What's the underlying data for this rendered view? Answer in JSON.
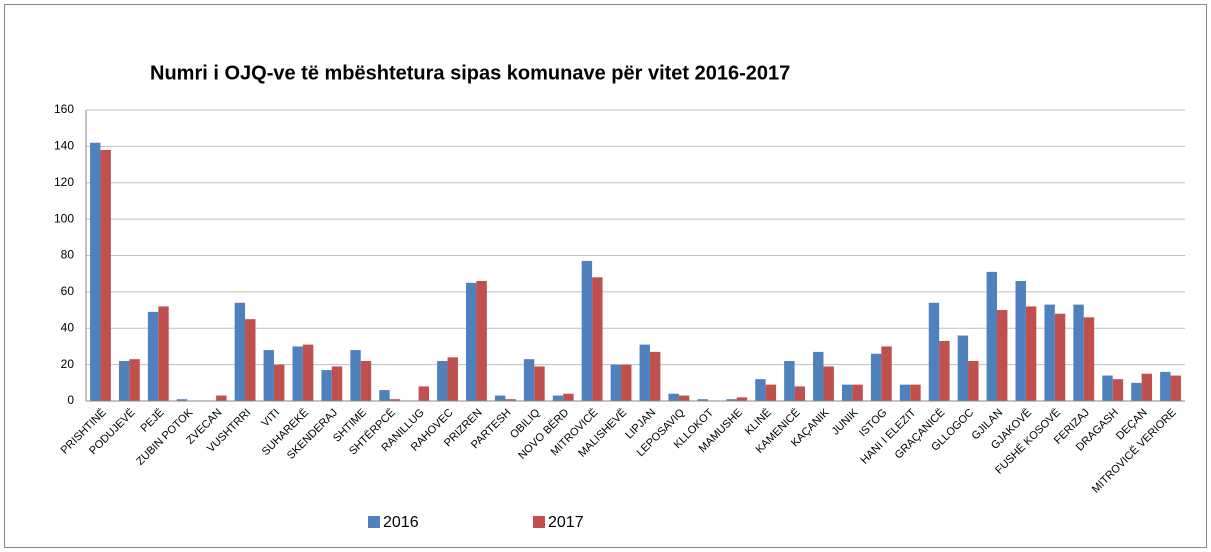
{
  "chart_data": {
    "type": "bar",
    "title": "Numri i OJQ-ve të mbështetura sipas komunave për vitet 2016-2017",
    "categories": [
      "PRISHTINË",
      "PODUJEVË",
      "PEJË",
      "ZUBIN POTOK",
      "ZVECAN",
      "VUSHTRRI",
      "VITI",
      "SUHAREKË",
      "SKENDERAJ",
      "SHTIME",
      "SHTËRPCË",
      "RANILLUG",
      "RAHOVEC",
      "PRIZREN",
      "PARTESH",
      "OBILIQ",
      "NOVO BËRD",
      "MITROVICË",
      "MALISHEVË",
      "LIPJAN",
      "LEPOSAVIQ",
      "KLLOKOT",
      "MAMUSHE",
      "KLINË",
      "KAMENICË",
      "KAÇANIK",
      "JUNIK",
      "ISTOG",
      "HANI I ELEZIT",
      "GRAÇANICË",
      "GLLOGOC",
      "GJILAN",
      "GJAKOVË",
      "FUSHË KOSOVË",
      "FERIZAJ",
      "DRAGASH",
      "DEÇAN",
      "MITROVICË VERIORE"
    ],
    "series": [
      {
        "name": "2016",
        "color": "#4f81bd",
        "values": [
          142,
          22,
          49,
          1,
          0,
          54,
          28,
          30,
          17,
          28,
          6,
          0,
          22,
          65,
          3,
          23,
          3,
          77,
          20,
          31,
          4,
          1,
          1,
          12,
          22,
          27,
          9,
          26,
          9,
          54,
          36,
          71,
          66,
          53,
          53,
          14,
          10,
          16
        ]
      },
      {
        "name": "2017",
        "color": "#c0504d",
        "values": [
          138,
          23,
          52,
          0,
          3,
          45,
          20,
          31,
          19,
          22,
          1,
          8,
          24,
          66,
          1,
          19,
          4,
          68,
          20,
          27,
          3,
          0,
          2,
          9,
          8,
          19,
          9,
          30,
          9,
          33,
          22,
          50,
          52,
          48,
          46,
          12,
          15,
          14
        ]
      }
    ],
    "ylim": [
      0,
      160
    ],
    "yticks": [
      0,
      20,
      40,
      60,
      80,
      100,
      120,
      140,
      160
    ],
    "grid": true,
    "legend": "bottom"
  }
}
